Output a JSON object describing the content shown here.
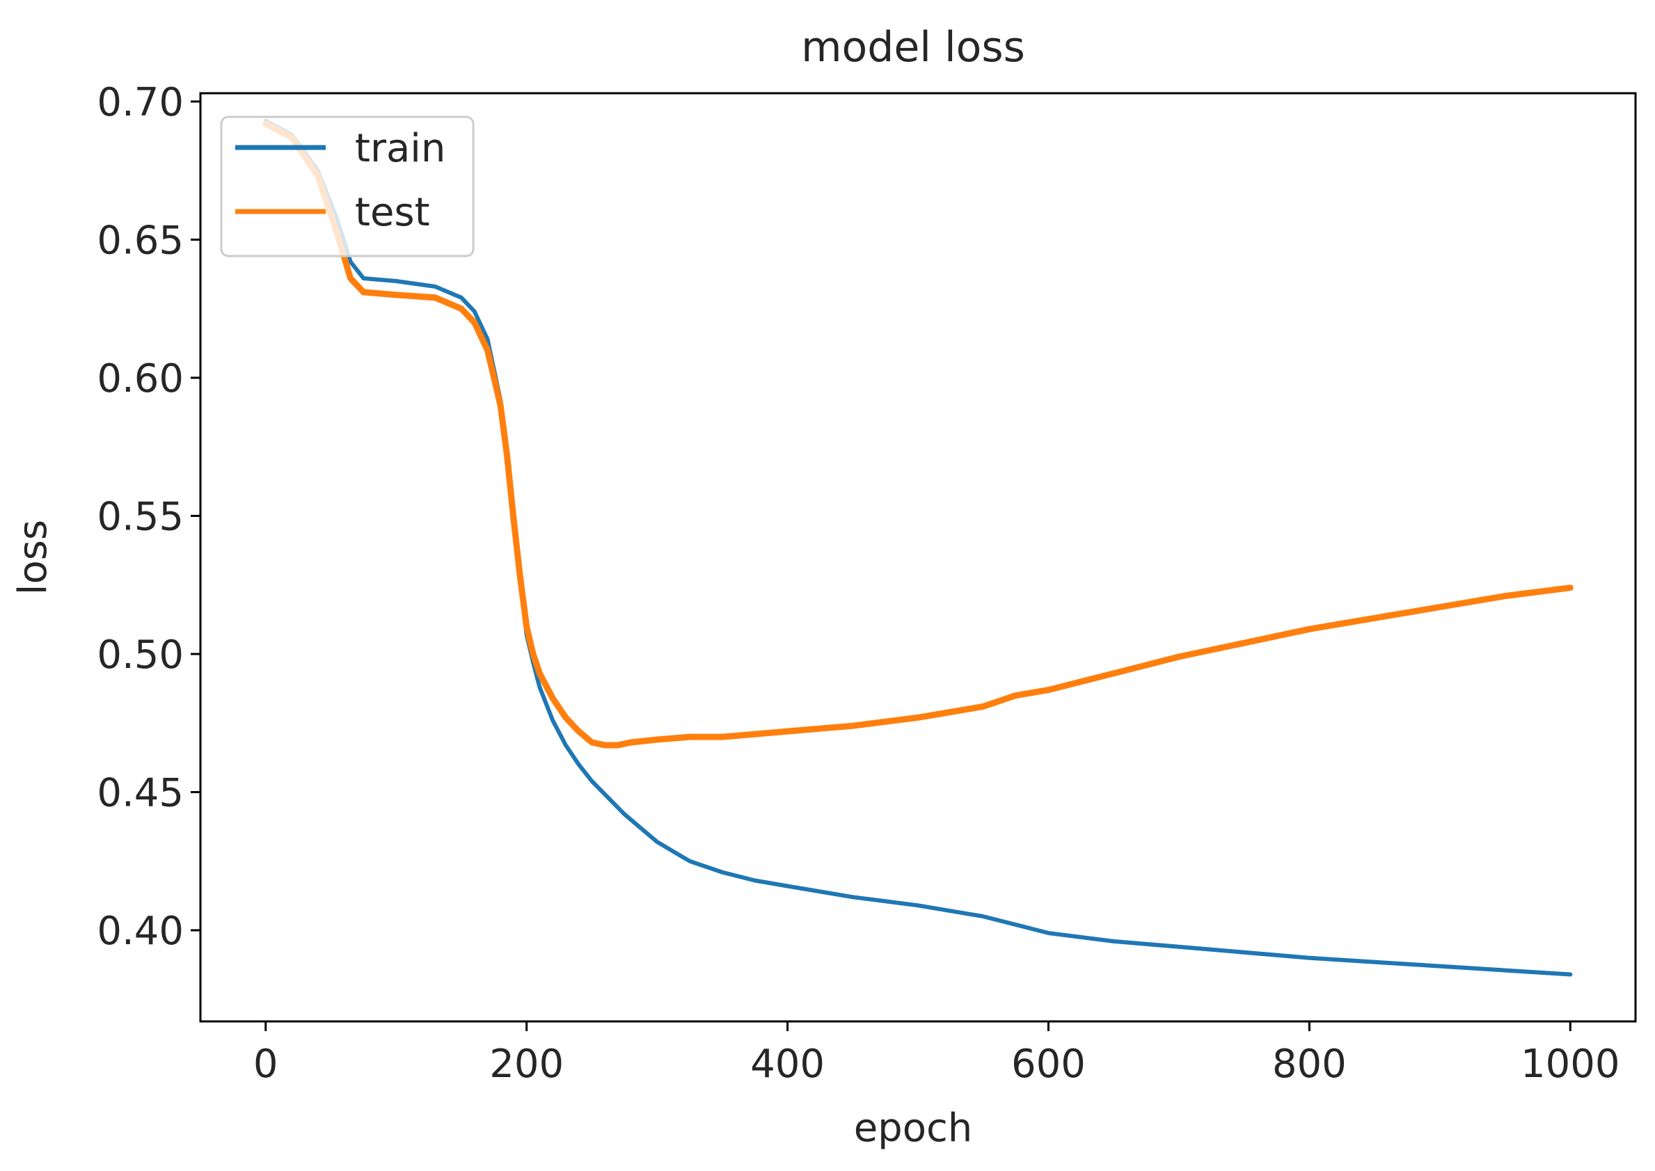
{
  "chart_data": {
    "type": "line",
    "title": "model loss",
    "xlabel": "epoch",
    "ylabel": "loss",
    "xlim": [
      -50,
      1050
    ],
    "ylim": [
      0.367,
      0.703
    ],
    "xticks": [
      0,
      200,
      400,
      600,
      800,
      1000
    ],
    "xtick_labels": [
      "0",
      "200",
      "400",
      "600",
      "800",
      "1000"
    ],
    "yticks": [
      0.4,
      0.45,
      0.5,
      0.55,
      0.6,
      0.65,
      0.7
    ],
    "ytick_labels": [
      "0.40",
      "0.45",
      "0.50",
      "0.55",
      "0.60",
      "0.65",
      "0.70"
    ],
    "grid": false,
    "legend": {
      "position": "upper left"
    },
    "series": [
      {
        "name": "train",
        "color": "#1f77b4",
        "x": [
          0,
          20,
          40,
          55,
          65,
          75,
          100,
          130,
          150,
          160,
          170,
          180,
          185,
          190,
          195,
          200,
          205,
          210,
          220,
          230,
          240,
          250,
          275,
          300,
          325,
          350,
          375,
          400,
          450,
          500,
          550,
          575,
          600,
          650,
          700,
          800,
          900,
          1000
        ],
        "y": [
          0.693,
          0.688,
          0.675,
          0.657,
          0.642,
          0.636,
          0.635,
          0.633,
          0.629,
          0.624,
          0.614,
          0.592,
          0.574,
          0.55,
          0.527,
          0.507,
          0.497,
          0.488,
          0.476,
          0.467,
          0.46,
          0.454,
          0.442,
          0.432,
          0.425,
          0.421,
          0.418,
          0.416,
          0.412,
          0.409,
          0.405,
          0.402,
          0.399,
          0.396,
          0.394,
          0.39,
          0.387,
          0.384
        ]
      },
      {
        "name": "test",
        "color": "#ff7f0e",
        "x": [
          0,
          20,
          40,
          55,
          65,
          75,
          100,
          130,
          150,
          160,
          170,
          180,
          185,
          190,
          195,
          200,
          205,
          210,
          220,
          230,
          240,
          250,
          260,
          270,
          280,
          300,
          325,
          350,
          375,
          400,
          450,
          500,
          550,
          575,
          600,
          650,
          700,
          750,
          800,
          850,
          900,
          950,
          1000
        ],
        "y": [
          0.692,
          0.687,
          0.673,
          0.652,
          0.636,
          0.631,
          0.63,
          0.629,
          0.625,
          0.62,
          0.61,
          0.59,
          0.572,
          0.549,
          0.528,
          0.51,
          0.5,
          0.493,
          0.484,
          0.477,
          0.472,
          0.468,
          0.467,
          0.467,
          0.468,
          0.469,
          0.47,
          0.47,
          0.471,
          0.472,
          0.474,
          0.477,
          0.481,
          0.485,
          0.487,
          0.493,
          0.499,
          0.504,
          0.509,
          0.513,
          0.517,
          0.521,
          0.524
        ]
      }
    ]
  }
}
